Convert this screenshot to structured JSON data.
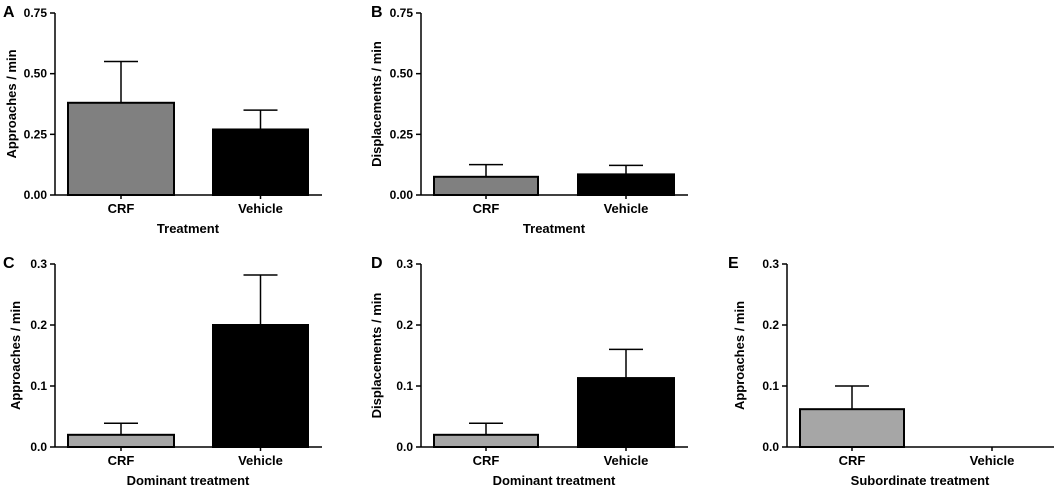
{
  "chart_data": [
    {
      "panel": "A",
      "type": "bar",
      "categories": [
        "CRF",
        "Vehicle"
      ],
      "values": [
        0.38,
        0.27
      ],
      "errors": [
        0.17,
        0.08
      ],
      "colors": [
        "#808080",
        "#000000"
      ],
      "xlabel": "Treatment",
      "ylabel": "Approaches / min",
      "ylim": [
        0,
        0.75
      ],
      "yticks": [
        "0.00",
        "0.25",
        "0.50",
        "0.75"
      ]
    },
    {
      "panel": "B",
      "type": "bar",
      "categories": [
        "CRF",
        "Vehicle"
      ],
      "values": [
        0.075,
        0.085
      ],
      "errors": [
        0.05,
        0.037
      ],
      "colors": [
        "#808080",
        "#000000"
      ],
      "xlabel": "Treatment",
      "ylabel": "Displacements / min",
      "ylim": [
        0,
        0.75
      ],
      "yticks": [
        "0.00",
        "0.25",
        "0.50",
        "0.75"
      ]
    },
    {
      "panel": "C",
      "type": "bar",
      "categories": [
        "CRF",
        "Vehicle"
      ],
      "values": [
        0.02,
        0.2
      ],
      "errors": [
        0.019,
        0.082
      ],
      "colors": [
        "#a6a6a6",
        "#000000"
      ],
      "xlabel": "Dominant treatment",
      "ylabel": "Approaches / min",
      "ylim": [
        0,
        0.3
      ],
      "yticks": [
        "0.0",
        "0.1",
        "0.2",
        "0.3"
      ]
    },
    {
      "panel": "D",
      "type": "bar",
      "categories": [
        "CRF",
        "Vehicle"
      ],
      "values": [
        0.02,
        0.113
      ],
      "errors": [
        0.019,
        0.047
      ],
      "colors": [
        "#a6a6a6",
        "#000000"
      ],
      "xlabel": "Dominant treatment",
      "ylabel": "Displacements / min",
      "ylim": [
        0,
        0.3
      ],
      "yticks": [
        "0.0",
        "0.1",
        "0.2",
        "0.3"
      ]
    },
    {
      "panel": "E",
      "type": "bar",
      "categories": [
        "CRF",
        "Vehicle"
      ],
      "values": [
        0.062,
        0
      ],
      "errors": [
        0.038,
        0
      ],
      "colors": [
        "#a6a6a6",
        "#000000"
      ],
      "xlabel": "Subordinate treatment",
      "ylabel": "Approaches / min",
      "ylim": [
        0,
        0.3
      ],
      "yticks": [
        "0.0",
        "0.1",
        "0.2",
        "0.3"
      ]
    }
  ]
}
